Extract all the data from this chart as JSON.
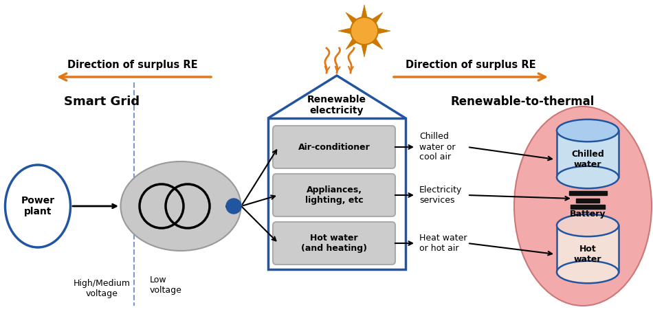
{
  "bg_color": "#ffffff",
  "smart_grid_label": "Smart Grid",
  "renewable_to_thermal_label": "Renewable-to-thermal",
  "surplus_re_left_label": "Direction of surplus RE",
  "surplus_re_right_label": "Direction of surplus RE",
  "renewable_electricity_label": "Renewable\nelectricity",
  "power_plant_label": "Power\nplant",
  "hm_voltage_label": "High/Medium\nvoltage",
  "low_voltage_label": "Low\nvoltage",
  "box1_label": "Air-conditioner",
  "box2_label": "Appliances,\nlighting, etc",
  "box3_label": "Hot water\n(and heating)",
  "text_chilled": "Chilled\nwater or\ncool air",
  "text_elec": "Electricity\nservices",
  "text_heat": "Heat water\nor hot air",
  "cyl1_label": "Chilled\nwater",
  "cyl2_label": "Battery",
  "cyl3_label": "Hot\nwater",
  "orange": "#E07818",
  "blue": "#2255A0",
  "gray_light": "#CCCCCC",
  "pink_bg": "#F2AAAA",
  "black": "#000000"
}
